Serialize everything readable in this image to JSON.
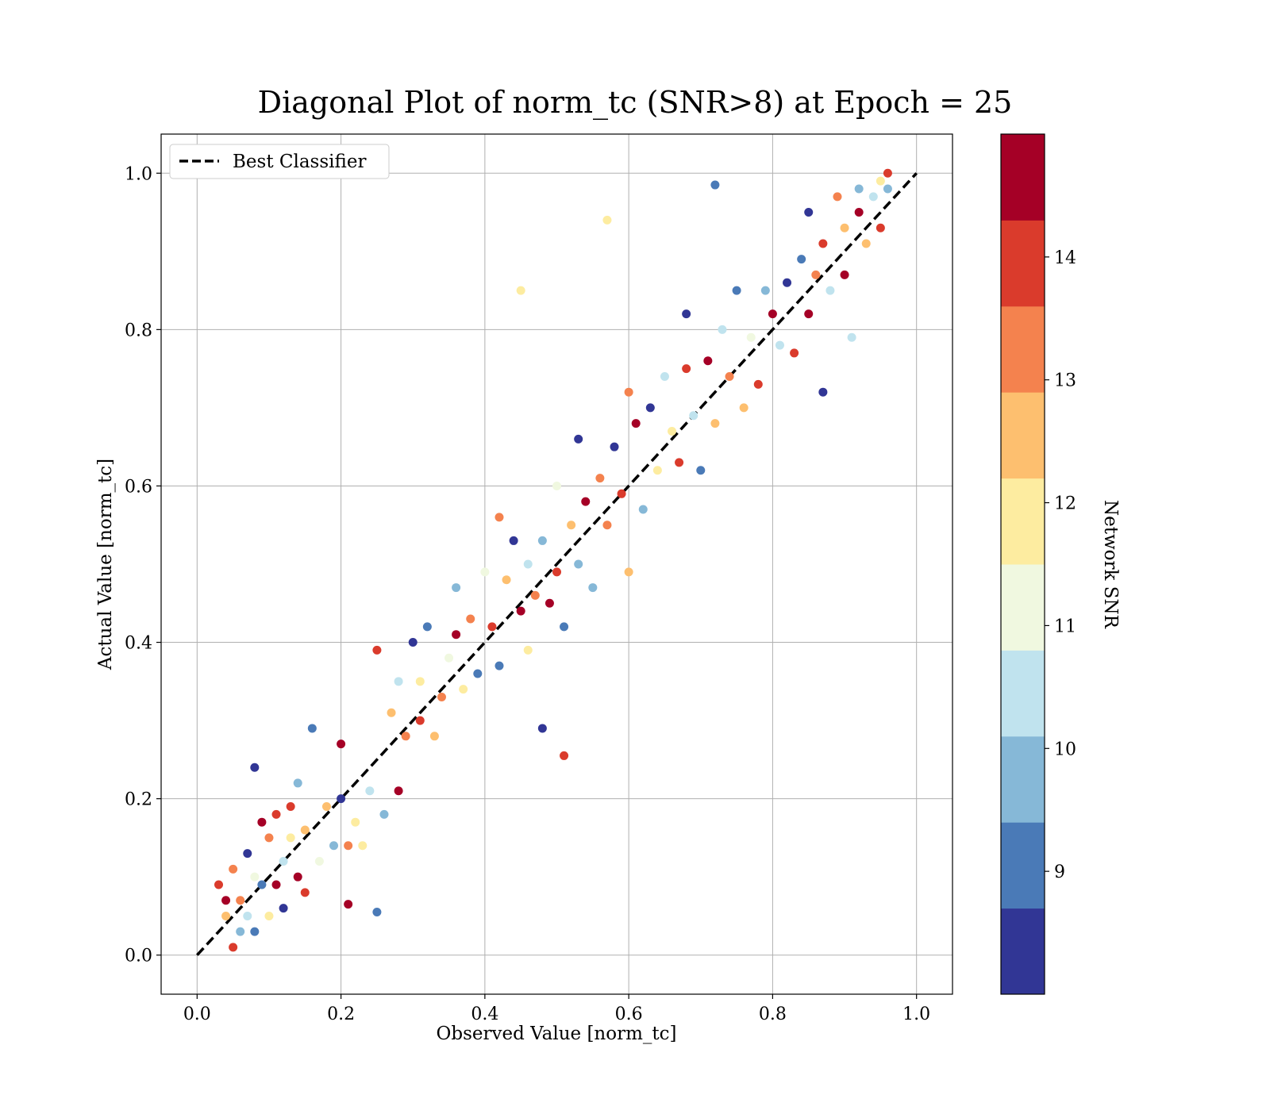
{
  "chart_data": {
    "type": "scatter",
    "title": "Diagonal Plot of norm_tc (SNR>8) at Epoch = 25",
    "xlabel": "Observed Value [norm_tc]",
    "ylabel": "Actual Value [norm_tc]",
    "xlim": [
      -0.05,
      1.05
    ],
    "ylim": [
      -0.05,
      1.05
    ],
    "x_ticks": [
      "0.0",
      "0.2",
      "0.4",
      "0.6",
      "0.8",
      "1.0"
    ],
    "y_ticks": [
      "0.0",
      "0.2",
      "0.4",
      "0.6",
      "0.8",
      "1.0"
    ],
    "grid": true,
    "legend": {
      "position": "top-left",
      "entries": [
        "Best Classifier"
      ]
    },
    "reference_line": {
      "name": "Best Classifier",
      "style": "dashed",
      "color": "#000000",
      "from": [
        0,
        0
      ],
      "to": [
        1,
        1
      ]
    },
    "colorbar": {
      "label": "Network SNR",
      "range": [
        8,
        15
      ],
      "ticks": [
        "9",
        "10",
        "11",
        "12",
        "13",
        "14"
      ],
      "colors": [
        "#313695",
        "#4a7ab7",
        "#86b8d7",
        "#c0e3ee",
        "#f0f8e0",
        "#fdeca0",
        "#fdbf6f",
        "#f4824e",
        "#da3b2c",
        "#a50026"
      ]
    },
    "highlighted_outliers": [
      {
        "x": 0.72,
        "y": 0.985,
        "snr": 9.2
      },
      {
        "x": 0.57,
        "y": 0.94,
        "snr": 11.8
      },
      {
        "x": 0.45,
        "y": 0.85,
        "snr": 11.9
      },
      {
        "x": 0.48,
        "y": 0.29,
        "snr": 8.4
      },
      {
        "x": 0.51,
        "y": 0.255,
        "snr": 13.9
      },
      {
        "x": 0.25,
        "y": 0.055,
        "snr": 8.8
      },
      {
        "x": 0.21,
        "y": 0.065,
        "snr": 14.5
      },
      {
        "x": 0.08,
        "y": 0.24,
        "snr": 8.3
      }
    ],
    "points": [
      [
        0.03,
        0.09,
        13.9
      ],
      [
        0.04,
        0.07,
        14.6
      ],
      [
        0.05,
        0.11,
        13.5
      ],
      [
        0.04,
        0.05,
        12.5
      ],
      [
        0.06,
        0.03,
        9.5
      ],
      [
        0.05,
        0.01,
        14.2
      ],
      [
        0.07,
        0.13,
        8.5
      ],
      [
        0.06,
        0.07,
        13.1
      ],
      [
        0.08,
        0.1,
        11.2
      ],
      [
        0.07,
        0.05,
        10.3
      ],
      [
        0.09,
        0.17,
        14.8
      ],
      [
        0.08,
        0.03,
        9.1
      ],
      [
        0.1,
        0.15,
        13.4
      ],
      [
        0.09,
        0.09,
        8.9
      ],
      [
        0.1,
        0.05,
        12.1
      ],
      [
        0.11,
        0.18,
        14.1
      ],
      [
        0.12,
        0.12,
        10.5
      ],
      [
        0.11,
        0.09,
        14.7
      ],
      [
        0.12,
        0.06,
        8.7
      ],
      [
        0.13,
        0.19,
        13.9
      ],
      [
        0.14,
        0.22,
        9.4
      ],
      [
        0.13,
        0.15,
        11.5
      ],
      [
        0.14,
        0.1,
        14.3
      ],
      [
        0.15,
        0.16,
        12.7
      ],
      [
        0.16,
        0.29,
        9.3
      ],
      [
        0.15,
        0.08,
        13.7
      ],
      [
        0.17,
        0.12,
        10.9
      ],
      [
        0.18,
        0.19,
        12.3
      ],
      [
        0.19,
        0.14,
        9.8
      ],
      [
        0.2,
        0.27,
        14.4
      ],
      [
        0.2,
        0.2,
        8.4
      ],
      [
        0.21,
        0.14,
        13.2
      ],
      [
        0.22,
        0.17,
        11.6
      ],
      [
        0.23,
        0.14,
        12.2
      ],
      [
        0.24,
        0.21,
        10.4
      ],
      [
        0.25,
        0.39,
        13.8
      ],
      [
        0.26,
        0.18,
        9.6
      ],
      [
        0.27,
        0.31,
        12.4
      ],
      [
        0.28,
        0.21,
        14.6
      ],
      [
        0.28,
        0.35,
        10.2
      ],
      [
        0.29,
        0.28,
        13.5
      ],
      [
        0.3,
        0.4,
        8.6
      ],
      [
        0.31,
        0.3,
        14.1
      ],
      [
        0.31,
        0.35,
        11.9
      ],
      [
        0.32,
        0.42,
        9.2
      ],
      [
        0.33,
        0.28,
        12.6
      ],
      [
        0.34,
        0.33,
        13.1
      ],
      [
        0.35,
        0.38,
        10.8
      ],
      [
        0.36,
        0.47,
        9.7
      ],
      [
        0.36,
        0.41,
        14.9
      ],
      [
        0.37,
        0.34,
        12.1
      ],
      [
        0.38,
        0.43,
        13.3
      ],
      [
        0.39,
        0.36,
        8.8
      ],
      [
        0.4,
        0.49,
        11.3
      ],
      [
        0.41,
        0.42,
        14.2
      ],
      [
        0.42,
        0.56,
        13.6
      ],
      [
        0.42,
        0.37,
        9.1
      ],
      [
        0.43,
        0.48,
        12.8
      ],
      [
        0.44,
        0.53,
        8.5
      ],
      [
        0.45,
        0.44,
        14.5
      ],
      [
        0.46,
        0.39,
        12.2
      ],
      [
        0.46,
        0.5,
        10.6
      ],
      [
        0.47,
        0.46,
        13.4
      ],
      [
        0.48,
        0.53,
        9.5
      ],
      [
        0.49,
        0.45,
        14.7
      ],
      [
        0.5,
        0.6,
        11.1
      ],
      [
        0.5,
        0.49,
        13.8
      ],
      [
        0.51,
        0.42,
        8.9
      ],
      [
        0.52,
        0.55,
        12.5
      ],
      [
        0.53,
        0.66,
        8.6
      ],
      [
        0.53,
        0.5,
        10.1
      ],
      [
        0.54,
        0.58,
        14.3
      ],
      [
        0.55,
        0.47,
        9.4
      ],
      [
        0.56,
        0.61,
        12.9
      ],
      [
        0.57,
        0.55,
        13.2
      ],
      [
        0.58,
        0.65,
        8.7
      ],
      [
        0.59,
        0.59,
        14.1
      ],
      [
        0.6,
        0.49,
        12.3
      ],
      [
        0.6,
        0.72,
        13.6
      ],
      [
        0.61,
        0.68,
        14.8
      ],
      [
        0.62,
        0.57,
        9.9
      ],
      [
        0.63,
        0.7,
        8.5
      ],
      [
        0.64,
        0.62,
        12.1
      ],
      [
        0.65,
        0.74,
        10.2
      ],
      [
        0.66,
        0.67,
        11.8
      ],
      [
        0.67,
        0.63,
        13.9
      ],
      [
        0.68,
        0.82,
        8.4
      ],
      [
        0.68,
        0.75,
        14.2
      ],
      [
        0.69,
        0.69,
        10.7
      ],
      [
        0.7,
        0.62,
        9.2
      ],
      [
        0.71,
        0.76,
        14.6
      ],
      [
        0.72,
        0.68,
        12.4
      ],
      [
        0.73,
        0.8,
        10.5
      ],
      [
        0.74,
        0.74,
        13.3
      ],
      [
        0.75,
        0.85,
        8.8
      ],
      [
        0.76,
        0.7,
        12.7
      ],
      [
        0.77,
        0.79,
        11.4
      ],
      [
        0.78,
        0.73,
        14.1
      ],
      [
        0.79,
        0.85,
        9.4
      ],
      [
        0.8,
        0.82,
        14.4
      ],
      [
        0.81,
        0.78,
        10.3
      ],
      [
        0.82,
        0.86,
        8.6
      ],
      [
        0.83,
        0.77,
        13.8
      ],
      [
        0.84,
        0.89,
        9.1
      ],
      [
        0.85,
        0.95,
        8.7
      ],
      [
        0.85,
        0.82,
        14.5
      ],
      [
        0.86,
        0.87,
        13.1
      ],
      [
        0.87,
        0.72,
        8.5
      ],
      [
        0.87,
        0.91,
        14.2
      ],
      [
        0.88,
        0.85,
        10.2
      ],
      [
        0.89,
        0.97,
        13.5
      ],
      [
        0.9,
        0.93,
        12.4
      ],
      [
        0.9,
        0.87,
        14.6
      ],
      [
        0.91,
        0.79,
        10.4
      ],
      [
        0.92,
        0.98,
        9.5
      ],
      [
        0.92,
        0.95,
        14.3
      ],
      [
        0.93,
        0.91,
        12.8
      ],
      [
        0.94,
        0.97,
        10.6
      ],
      [
        0.95,
        0.99,
        12.2
      ],
      [
        0.95,
        0.93,
        14.1
      ],
      [
        0.96,
        1.0,
        13.7
      ],
      [
        0.96,
        0.98,
        9.8
      ]
    ]
  }
}
